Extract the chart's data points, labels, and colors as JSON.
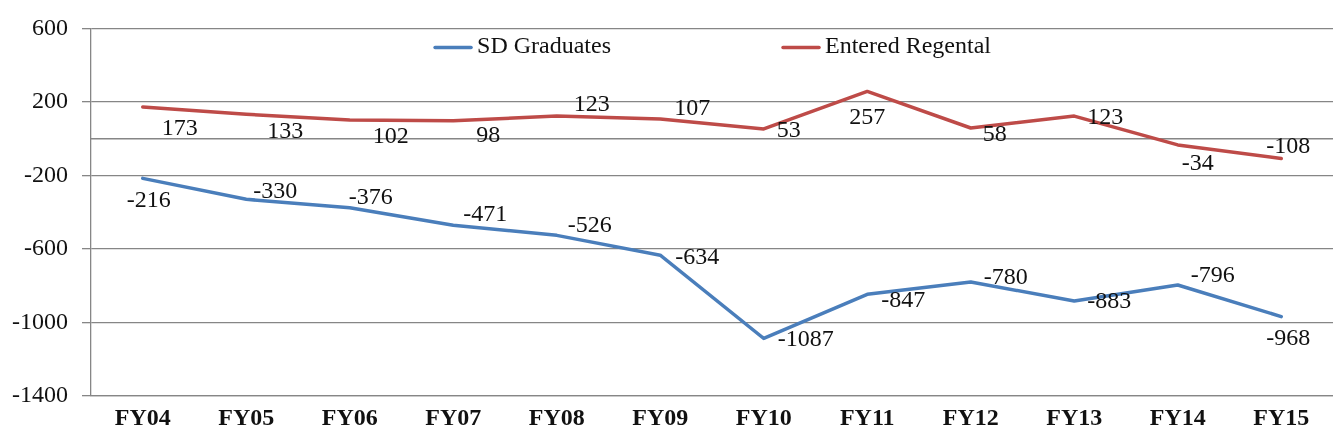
{
  "chart_data": {
    "type": "line",
    "categories": [
      "FY04",
      "FY05",
      "FY06",
      "FY07",
      "FY08",
      "FY09",
      "FY10",
      "FY11",
      "FY12",
      "FY13",
      "FY14",
      "FY15"
    ],
    "series": [
      {
        "name": "SD Graduates",
        "color": "#4a7ebb",
        "values": [
          -216,
          -330,
          -376,
          -471,
          -526,
          -634,
          -1087,
          -847,
          -780,
          -883,
          -796,
          -968
        ]
      },
      {
        "name": "Entered Regental",
        "color": "#be4b48",
        "values": [
          173,
          133,
          102,
          98,
          123,
          107,
          53,
          257,
          58,
          123,
          -34,
          -108
        ]
      }
    ],
    "ylim": [
      -1400,
      600
    ],
    "yticks": [
      -1400,
      -1000,
      -600,
      -200,
      200,
      600
    ],
    "grid": "y",
    "legend": "top",
    "marker": "none",
    "line_style": "solid",
    "data_labels": true,
    "ref_lines": [
      {
        "axis": "y",
        "value": 0,
        "color": "#868686"
      }
    ]
  }
}
